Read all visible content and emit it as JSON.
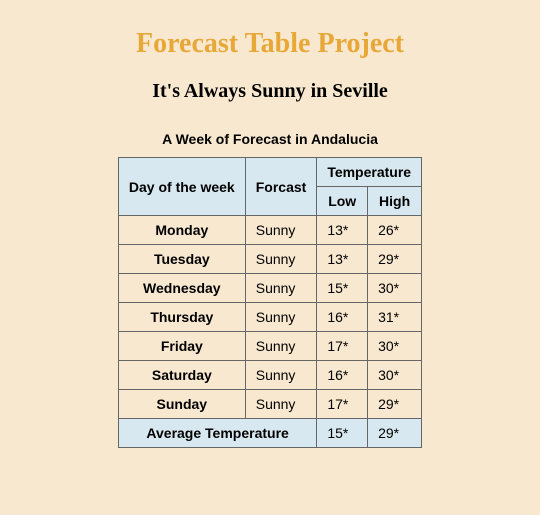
{
  "page": {
    "title": "Forecast Table Project",
    "subtitle": "It's Always Sunny in Seville",
    "caption": "A Week of Forecast in Andalucia"
  },
  "table": {
    "headers": {
      "day": "Day of the week",
      "forecast": "Forcast",
      "temperature": "Temperature",
      "low": "Low",
      "high": "High"
    },
    "rows": [
      {
        "day": "Monday",
        "forecast": "Sunny",
        "low": "13*",
        "high": "26*"
      },
      {
        "day": "Tuesday",
        "forecast": "Sunny",
        "low": "13*",
        "high": "29*"
      },
      {
        "day": "Wednesday",
        "forecast": "Sunny",
        "low": "15*",
        "high": "30*"
      },
      {
        "day": "Thursday",
        "forecast": "Sunny",
        "low": "16*",
        "high": "31*"
      },
      {
        "day": "Friday",
        "forecast": "Sunny",
        "low": "17*",
        "high": "30*"
      },
      {
        "day": "Saturday",
        "forecast": "Sunny",
        "low": "16*",
        "high": "30*"
      },
      {
        "day": "Sunday",
        "forecast": "Sunny",
        "low": "17*",
        "high": "29*"
      }
    ],
    "average": {
      "label": "Average Temperature",
      "low": "15*",
      "high": "29*"
    }
  },
  "styling": {
    "background_color": "#f8e8d0",
    "title_color": "#e8a838",
    "header_bg": "#d8e8f0",
    "cell_bg": "#f8e8d0",
    "border_color": "#666666"
  }
}
